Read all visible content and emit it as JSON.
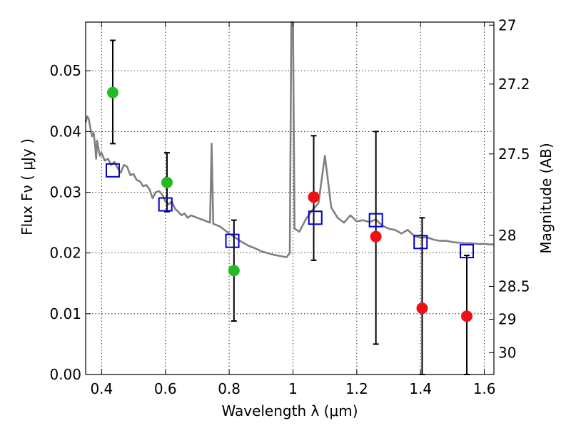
{
  "chart_data": {
    "type": "scatter",
    "xlabel": "Wavelength  λ (μm)",
    "ylabel": "Flux  Fν  ( μJy )",
    "ylabel_right": "Magnitude (AB)",
    "xlim": [
      0.35,
      1.63
    ],
    "ylim": [
      0.0,
      0.058
    ],
    "grid": true,
    "x_ticks": [
      0.4,
      0.6,
      0.8,
      1.0,
      1.2,
      1.4,
      1.6
    ],
    "x_tick_labels": [
      "0.4",
      "0.6",
      "0.8",
      "1",
      "1.2",
      "1.4",
      "1.6"
    ],
    "y_ticks": [
      0.0,
      0.01,
      0.02,
      0.03,
      0.04,
      0.05
    ],
    "y_tick_labels": [
      "0.00",
      "0.01",
      "0.02",
      "0.03",
      "0.04",
      "0.05"
    ],
    "right_ticks": [
      {
        "label": "27",
        "flux": 0.0575
      },
      {
        "label": "27.2",
        "flux": 0.0478
      },
      {
        "label": "27.5",
        "flux": 0.0363
      },
      {
        "label": "28",
        "flux": 0.0229
      },
      {
        "label": "28.5",
        "flux": 0.0145
      },
      {
        "label": "29",
        "flux": 0.0091
      },
      {
        "label": "30",
        "flux": 0.0036
      }
    ],
    "series": [
      {
        "kind": "model-spectrum",
        "color": "#808080",
        "points": [
          [
            0.35,
            0.0415
          ],
          [
            0.355,
            0.0425
          ],
          [
            0.36,
            0.042
          ],
          [
            0.365,
            0.0405
          ],
          [
            0.37,
            0.0392
          ],
          [
            0.375,
            0.0398
          ],
          [
            0.38,
            0.0375
          ],
          [
            0.383,
            0.0355
          ],
          [
            0.386,
            0.0385
          ],
          [
            0.39,
            0.0372
          ],
          [
            0.395,
            0.036
          ],
          [
            0.4,
            0.0365
          ],
          [
            0.41,
            0.0352
          ],
          [
            0.42,
            0.0355
          ],
          [
            0.43,
            0.0345
          ],
          [
            0.44,
            0.035
          ],
          [
            0.45,
            0.034
          ],
          [
            0.46,
            0.0332
          ],
          [
            0.47,
            0.0345
          ],
          [
            0.48,
            0.0342
          ],
          [
            0.49,
            0.0328
          ],
          [
            0.5,
            0.033
          ],
          [
            0.51,
            0.032
          ],
          [
            0.52,
            0.0318
          ],
          [
            0.53,
            0.031
          ],
          [
            0.54,
            0.0312
          ],
          [
            0.55,
            0.0305
          ],
          [
            0.56,
            0.029
          ],
          [
            0.57,
            0.03
          ],
          [
            0.58,
            0.0302
          ],
          [
            0.59,
            0.0296
          ],
          [
            0.6,
            0.0285
          ],
          [
            0.61,
            0.028
          ],
          [
            0.62,
            0.0285
          ],
          [
            0.63,
            0.0273
          ],
          [
            0.64,
            0.0268
          ],
          [
            0.65,
            0.0262
          ],
          [
            0.66,
            0.0265
          ],
          [
            0.67,
            0.0258
          ],
          [
            0.68,
            0.0262
          ],
          [
            0.69,
            0.026
          ],
          [
            0.7,
            0.0258
          ],
          [
            0.71,
            0.0256
          ],
          [
            0.72,
            0.0254
          ],
          [
            0.73,
            0.0252
          ],
          [
            0.74,
            0.025
          ],
          [
            0.745,
            0.038
          ],
          [
            0.75,
            0.0248
          ],
          [
            0.76,
            0.0246
          ],
          [
            0.77,
            0.0244
          ],
          [
            0.78,
            0.024
          ],
          [
            0.8,
            0.0232
          ],
          [
            0.82,
            0.0225
          ],
          [
            0.84,
            0.0218
          ],
          [
            0.86,
            0.0212
          ],
          [
            0.88,
            0.0208
          ],
          [
            0.9,
            0.0203
          ],
          [
            0.92,
            0.02
          ],
          [
            0.94,
            0.0197
          ],
          [
            0.96,
            0.0195
          ],
          [
            0.98,
            0.0193
          ],
          [
            0.99,
            0.02
          ],
          [
            0.995,
            0.058
          ],
          [
            1.0,
            0.058
          ],
          [
            1.005,
            0.024
          ],
          [
            1.02,
            0.0235
          ],
          [
            1.04,
            0.0255
          ],
          [
            1.06,
            0.027
          ],
          [
            1.08,
            0.0282
          ],
          [
            1.1,
            0.036
          ],
          [
            1.12,
            0.0275
          ],
          [
            1.14,
            0.0258
          ],
          [
            1.16,
            0.025
          ],
          [
            1.18,
            0.0262
          ],
          [
            1.2,
            0.0252
          ],
          [
            1.22,
            0.0254
          ],
          [
            1.24,
            0.0251
          ],
          [
            1.26,
            0.0255
          ],
          [
            1.28,
            0.0245
          ],
          [
            1.3,
            0.024
          ],
          [
            1.32,
            0.0238
          ],
          [
            1.34,
            0.0232
          ],
          [
            1.36,
            0.0238
          ],
          [
            1.38,
            0.0228
          ],
          [
            1.4,
            0.0225
          ],
          [
            1.42,
            0.0226
          ],
          [
            1.44,
            0.0222
          ],
          [
            1.46,
            0.022
          ],
          [
            1.48,
            0.022
          ],
          [
            1.5,
            0.0218
          ],
          [
            1.52,
            0.0217
          ],
          [
            1.54,
            0.0216
          ],
          [
            1.56,
            0.0216
          ],
          [
            1.58,
            0.0215
          ],
          [
            1.6,
            0.0215
          ],
          [
            1.62,
            0.0214
          ],
          [
            1.63,
            0.0214
          ]
        ]
      },
      {
        "kind": "model-photometry",
        "marker": "square",
        "color": "#0000cc",
        "points": [
          [
            0.435,
            0.0336
          ],
          [
            0.6,
            0.028
          ],
          [
            0.81,
            0.022
          ],
          [
            1.07,
            0.0258
          ],
          [
            1.26,
            0.0254
          ],
          [
            1.4,
            0.0218
          ],
          [
            1.545,
            0.0203
          ]
        ]
      },
      {
        "kind": "observed-photometry",
        "marker": "circle",
        "color": "#22bb22",
        "points": [
          {
            "x": 0.435,
            "y": 0.0464,
            "lo": 0.038,
            "hi": 0.055
          },
          {
            "x": 0.605,
            "y": 0.0316,
            "lo": 0.0268,
            "hi": 0.0365
          },
          {
            "x": 0.815,
            "y": 0.0171,
            "lo": 0.0088,
            "hi": 0.0254
          }
        ]
      },
      {
        "kind": "observed-photometry",
        "marker": "circle",
        "color": "#ee1111",
        "points": [
          {
            "x": 1.065,
            "y": 0.0292,
            "lo": 0.0188,
            "hi": 0.0393
          },
          {
            "x": 1.26,
            "y": 0.0227,
            "lo": 0.005,
            "hi": 0.04
          },
          {
            "x": 1.405,
            "y": 0.0109,
            "lo": 0.0,
            "hi": 0.0258
          },
          {
            "x": 1.545,
            "y": 0.0096,
            "lo": 0.0,
            "hi": 0.0196
          }
        ]
      }
    ]
  }
}
